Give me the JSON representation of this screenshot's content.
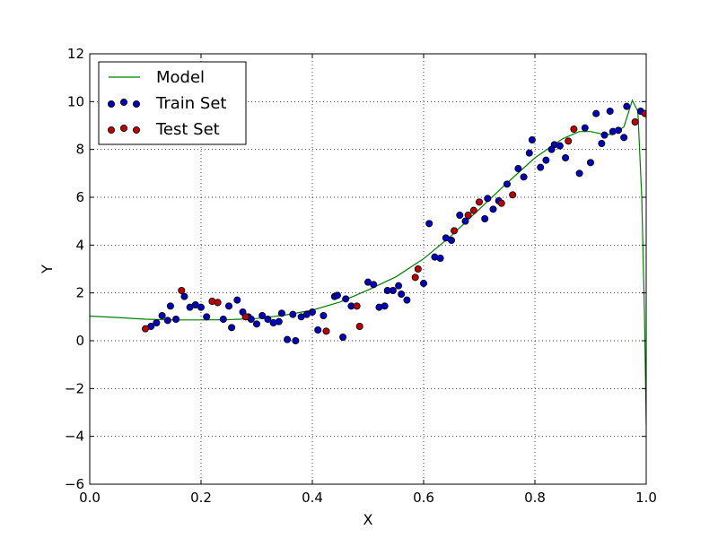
{
  "chart_data": {
    "type": "scatter",
    "title": "",
    "xlabel": "X",
    "ylabel": "Y",
    "xlim": [
      0.0,
      1.0
    ],
    "ylim": [
      -6,
      12
    ],
    "x_ticks": [
      "0.0",
      "0.2",
      "0.4",
      "0.6",
      "0.8",
      "1.0"
    ],
    "y_ticks": [
      "−6",
      "−4",
      "−2",
      "0",
      "2",
      "4",
      "6",
      "8",
      "10",
      "12"
    ],
    "grid": true,
    "legend_position": "top-left",
    "series": [
      {
        "name": "Model",
        "kind": "line",
        "color": "#008000",
        "points": [
          [
            0.0,
            1.03
          ],
          [
            0.05,
            0.97
          ],
          [
            0.1,
            0.9
          ],
          [
            0.15,
            0.87
          ],
          [
            0.2,
            0.87
          ],
          [
            0.25,
            0.88
          ],
          [
            0.3,
            0.93
          ],
          [
            0.35,
            1.07
          ],
          [
            0.4,
            1.28
          ],
          [
            0.45,
            1.62
          ],
          [
            0.5,
            2.12
          ],
          [
            0.55,
            2.67
          ],
          [
            0.6,
            3.43
          ],
          [
            0.65,
            4.4
          ],
          [
            0.7,
            5.5
          ],
          [
            0.75,
            6.6
          ],
          [
            0.8,
            7.65
          ],
          [
            0.85,
            8.45
          ],
          [
            0.88,
            8.75
          ],
          [
            0.9,
            8.75
          ],
          [
            0.92,
            8.65
          ],
          [
            0.94,
            8.62
          ],
          [
            0.96,
            8.95
          ],
          [
            0.975,
            10.05
          ],
          [
            0.985,
            9.6
          ],
          [
            0.992,
            6.0
          ],
          [
            0.997,
            1.0
          ],
          [
            1.0,
            -3.5
          ]
        ]
      },
      {
        "name": "Train Set",
        "kind": "scatter",
        "color": "#0000bf",
        "points": [
          [
            0.11,
            0.6
          ],
          [
            0.12,
            0.75
          ],
          [
            0.13,
            1.05
          ],
          [
            0.14,
            0.85
          ],
          [
            0.145,
            1.45
          ],
          [
            0.155,
            0.9
          ],
          [
            0.17,
            1.85
          ],
          [
            0.18,
            1.4
          ],
          [
            0.19,
            1.5
          ],
          [
            0.2,
            1.4
          ],
          [
            0.21,
            1.0
          ],
          [
            0.23,
            1.6
          ],
          [
            0.24,
            0.9
          ],
          [
            0.25,
            1.45
          ],
          [
            0.255,
            0.55
          ],
          [
            0.265,
            1.7
          ],
          [
            0.275,
            1.2
          ],
          [
            0.285,
            1.0
          ],
          [
            0.29,
            0.9
          ],
          [
            0.3,
            0.7
          ],
          [
            0.31,
            1.05
          ],
          [
            0.32,
            0.9
          ],
          [
            0.33,
            0.75
          ],
          [
            0.34,
            0.8
          ],
          [
            0.345,
            1.15
          ],
          [
            0.355,
            0.05
          ],
          [
            0.365,
            1.1
          ],
          [
            0.37,
            0.0
          ],
          [
            0.38,
            1.0
          ],
          [
            0.39,
            1.1
          ],
          [
            0.4,
            1.2
          ],
          [
            0.41,
            0.45
          ],
          [
            0.42,
            1.05
          ],
          [
            0.44,
            1.85
          ],
          [
            0.445,
            1.9
          ],
          [
            0.455,
            0.15
          ],
          [
            0.46,
            1.75
          ],
          [
            0.47,
            1.45
          ],
          [
            0.5,
            2.45
          ],
          [
            0.51,
            2.35
          ],
          [
            0.52,
            1.4
          ],
          [
            0.53,
            1.45
          ],
          [
            0.535,
            2.1
          ],
          [
            0.545,
            2.1
          ],
          [
            0.555,
            2.3
          ],
          [
            0.56,
            1.95
          ],
          [
            0.57,
            1.7
          ],
          [
            0.6,
            2.4
          ],
          [
            0.61,
            4.9
          ],
          [
            0.62,
            3.5
          ],
          [
            0.63,
            3.45
          ],
          [
            0.64,
            4.3
          ],
          [
            0.65,
            4.2
          ],
          [
            0.665,
            5.25
          ],
          [
            0.675,
            5.0
          ],
          [
            0.71,
            5.1
          ],
          [
            0.715,
            5.95
          ],
          [
            0.725,
            5.5
          ],
          [
            0.735,
            5.85
          ],
          [
            0.75,
            6.55
          ],
          [
            0.77,
            7.2
          ],
          [
            0.78,
            6.85
          ],
          [
            0.79,
            7.85
          ],
          [
            0.795,
            8.4
          ],
          [
            0.81,
            7.25
          ],
          [
            0.82,
            7.55
          ],
          [
            0.83,
            8.0
          ],
          [
            0.835,
            8.2
          ],
          [
            0.845,
            8.15
          ],
          [
            0.855,
            7.65
          ],
          [
            0.88,
            7.0
          ],
          [
            0.89,
            8.9
          ],
          [
            0.9,
            7.45
          ],
          [
            0.91,
            9.5
          ],
          [
            0.92,
            8.25
          ],
          [
            0.925,
            8.6
          ],
          [
            0.935,
            9.6
          ],
          [
            0.94,
            8.75
          ],
          [
            0.95,
            8.8
          ],
          [
            0.96,
            8.5
          ],
          [
            0.965,
            9.8
          ],
          [
            0.99,
            9.6
          ]
        ]
      },
      {
        "name": "Test Set",
        "kind": "scatter",
        "color": "#bf0000",
        "points": [
          [
            0.1,
            0.5
          ],
          [
            0.165,
            2.1
          ],
          [
            0.22,
            1.65
          ],
          [
            0.23,
            1.6
          ],
          [
            0.28,
            1.0
          ],
          [
            0.425,
            0.4
          ],
          [
            0.48,
            1.45
          ],
          [
            0.485,
            0.6
          ],
          [
            0.585,
            2.65
          ],
          [
            0.59,
            3.0
          ],
          [
            0.655,
            4.6
          ],
          [
            0.68,
            5.25
          ],
          [
            0.69,
            5.45
          ],
          [
            0.7,
            5.8
          ],
          [
            0.74,
            5.75
          ],
          [
            0.76,
            6.1
          ],
          [
            0.86,
            8.35
          ],
          [
            0.87,
            8.85
          ],
          [
            0.98,
            9.15
          ],
          [
            0.998,
            9.5
          ]
        ]
      }
    ]
  }
}
